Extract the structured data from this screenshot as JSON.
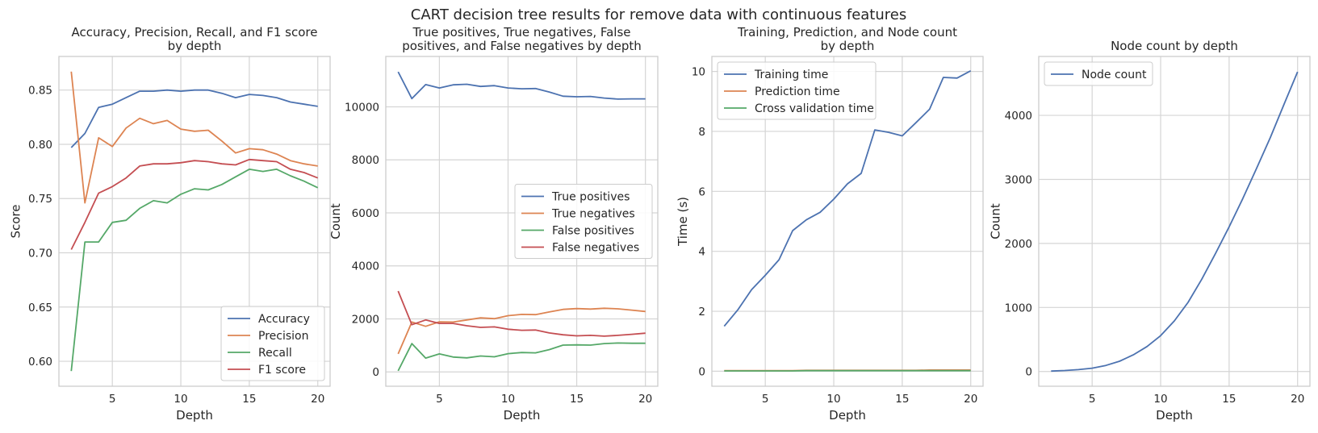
{
  "figure_title": "CART decision tree results for remove data with continuous features",
  "colors": {
    "blue": "#4c72b0",
    "orange": "#dd8452",
    "green": "#55a868",
    "red": "#c44e52",
    "grid": "#d5d5d5",
    "spine": "#cccccc"
  },
  "chart_data": [
    {
      "type": "line",
      "title": "Accuracy, Precision, Recall, and F1 score\nby depth",
      "xlabel": "Depth",
      "ylabel": "Score",
      "xlim": [
        1.1,
        20.9
      ],
      "ylim": [
        0.577,
        0.881
      ],
      "xticks": [
        5,
        10,
        15,
        20
      ],
      "yticks": [
        0.6,
        0.65,
        0.7,
        0.75,
        0.8,
        0.85
      ],
      "ytick_labels": [
        "0.60",
        "0.65",
        "0.70",
        "0.75",
        "0.80",
        "0.85"
      ],
      "grid": true,
      "legend_position": "lower right",
      "x": [
        2,
        3,
        4,
        5,
        6,
        7,
        8,
        9,
        10,
        11,
        12,
        13,
        14,
        15,
        16,
        17,
        18,
        19,
        20
      ],
      "series": [
        {
          "name": "Accuracy",
          "color": "blue",
          "values": [
            0.797,
            0.81,
            0.834,
            0.837,
            0.843,
            0.849,
            0.849,
            0.85,
            0.849,
            0.85,
            0.85,
            0.847,
            0.843,
            0.846,
            0.845,
            0.843,
            0.839,
            0.837,
            0.835
          ]
        },
        {
          "name": "Precision",
          "color": "orange",
          "values": [
            0.867,
            0.746,
            0.806,
            0.798,
            0.815,
            0.824,
            0.819,
            0.822,
            0.814,
            0.812,
            0.813,
            0.803,
            0.792,
            0.796,
            0.795,
            0.791,
            0.785,
            0.782,
            0.78
          ]
        },
        {
          "name": "Recall",
          "color": "green",
          "values": [
            0.591,
            0.71,
            0.71,
            0.728,
            0.73,
            0.741,
            0.748,
            0.746,
            0.754,
            0.759,
            0.758,
            0.763,
            0.77,
            0.777,
            0.775,
            0.777,
            0.771,
            0.766,
            0.76
          ]
        },
        {
          "name": "F1 score",
          "color": "red",
          "values": [
            0.703,
            0.728,
            0.755,
            0.761,
            0.769,
            0.78,
            0.782,
            0.782,
            0.783,
            0.785,
            0.784,
            0.782,
            0.781,
            0.786,
            0.785,
            0.784,
            0.777,
            0.774,
            0.769
          ]
        }
      ]
    },
    {
      "type": "line",
      "title": "True positives, True negatives, False\npositives, and False negatives by depth",
      "xlabel": "Depth",
      "ylabel": "Count",
      "xlim": [
        1.1,
        20.9
      ],
      "ylim": [
        -540,
        11900
      ],
      "xticks": [
        5,
        10,
        15,
        20
      ],
      "yticks": [
        0,
        2000,
        4000,
        6000,
        8000,
        10000
      ],
      "ytick_labels": [
        "0",
        "2000",
        "4000",
        "6000",
        "8000",
        "10000"
      ],
      "grid": true,
      "legend_position": "center right",
      "x": [
        2,
        3,
        4,
        5,
        6,
        7,
        8,
        9,
        10,
        11,
        12,
        13,
        14,
        15,
        16,
        17,
        18,
        19,
        20
      ],
      "series": [
        {
          "name": "True positives",
          "color": "blue",
          "values": [
            11320,
            10310,
            10840,
            10710,
            10830,
            10850,
            10770,
            10800,
            10710,
            10680,
            10690,
            10560,
            10400,
            10380,
            10390,
            10330,
            10290,
            10300,
            10300
          ]
        },
        {
          "name": "True negatives",
          "color": "orange",
          "values": [
            680,
            1880,
            1720,
            1890,
            1880,
            1960,
            2040,
            2010,
            2120,
            2170,
            2160,
            2260,
            2360,
            2390,
            2370,
            2400,
            2380,
            2330,
            2280
          ]
        },
        {
          "name": "False positives",
          "color": "green",
          "values": [
            40,
            1070,
            520,
            680,
            560,
            530,
            600,
            570,
            690,
            730,
            720,
            840,
            1010,
            1020,
            1010,
            1070,
            1090,
            1080,
            1080
          ]
        },
        {
          "name": "False negatives",
          "color": "red",
          "values": [
            3050,
            1780,
            1960,
            1830,
            1830,
            1740,
            1680,
            1700,
            1610,
            1570,
            1580,
            1470,
            1400,
            1360,
            1380,
            1350,
            1380,
            1420,
            1460
          ]
        }
      ]
    },
    {
      "type": "line",
      "title": "Training, Prediction, and Node count\nby depth",
      "xlabel": "Depth",
      "ylabel": "Time (s)",
      "xlim": [
        1.1,
        20.9
      ],
      "ylim": [
        -0.5,
        10.5
      ],
      "xticks": [
        5,
        10,
        15,
        20
      ],
      "yticks": [
        0,
        2,
        4,
        6,
        8,
        10
      ],
      "ytick_labels": [
        "0",
        "2",
        "4",
        "6",
        "8",
        "10"
      ],
      "grid": true,
      "legend_position": "upper left",
      "x": [
        2,
        3,
        4,
        5,
        6,
        7,
        8,
        9,
        10,
        11,
        12,
        13,
        14,
        15,
        16,
        17,
        18,
        19,
        20
      ],
      "series": [
        {
          "name": "Training time",
          "color": "blue",
          "values": [
            1.5,
            2.05,
            2.72,
            3.2,
            3.72,
            4.69,
            5.05,
            5.3,
            5.74,
            6.25,
            6.6,
            8.05,
            7.97,
            7.85,
            8.29,
            8.74,
            9.8,
            9.78,
            10.02
          ]
        },
        {
          "name": "Prediction time",
          "color": "orange",
          "values": [
            0.02,
            0.02,
            0.02,
            0.02,
            0.02,
            0.02,
            0.03,
            0.03,
            0.03,
            0.03,
            0.03,
            0.03,
            0.03,
            0.03,
            0.03,
            0.04,
            0.04,
            0.04,
            0.04
          ]
        },
        {
          "name": "Cross validation time",
          "color": "green",
          "values": [
            0.01,
            0.01,
            0.01,
            0.01,
            0.01,
            0.01,
            0.02,
            0.02,
            0.02,
            0.02,
            0.02,
            0.02,
            0.02,
            0.02,
            0.02,
            0.02,
            0.02,
            0.02,
            0.02
          ]
        }
      ]
    },
    {
      "type": "line",
      "title": "Node count by depth",
      "xlabel": "Depth",
      "ylabel": "Count",
      "xlim": [
        1.1,
        20.9
      ],
      "ylim": [
        -230,
        4920
      ],
      "xticks": [
        5,
        10,
        15,
        20
      ],
      "yticks": [
        0,
        1000,
        2000,
        3000,
        4000
      ],
      "ytick_labels": [
        "0",
        "1000",
        "2000",
        "3000",
        "4000"
      ],
      "grid": true,
      "legend_position": "upper left",
      "x": [
        2,
        3,
        4,
        5,
        6,
        7,
        8,
        9,
        10,
        11,
        12,
        13,
        14,
        15,
        16,
        17,
        18,
        19,
        20
      ],
      "series": [
        {
          "name": "Node count",
          "color": "blue",
          "values": [
            7,
            15,
            30,
            52,
            95,
            160,
            260,
            390,
            560,
            790,
            1080,
            1440,
            1840,
            2260,
            2700,
            3170,
            3650,
            4170,
            4680
          ]
        }
      ]
    }
  ]
}
